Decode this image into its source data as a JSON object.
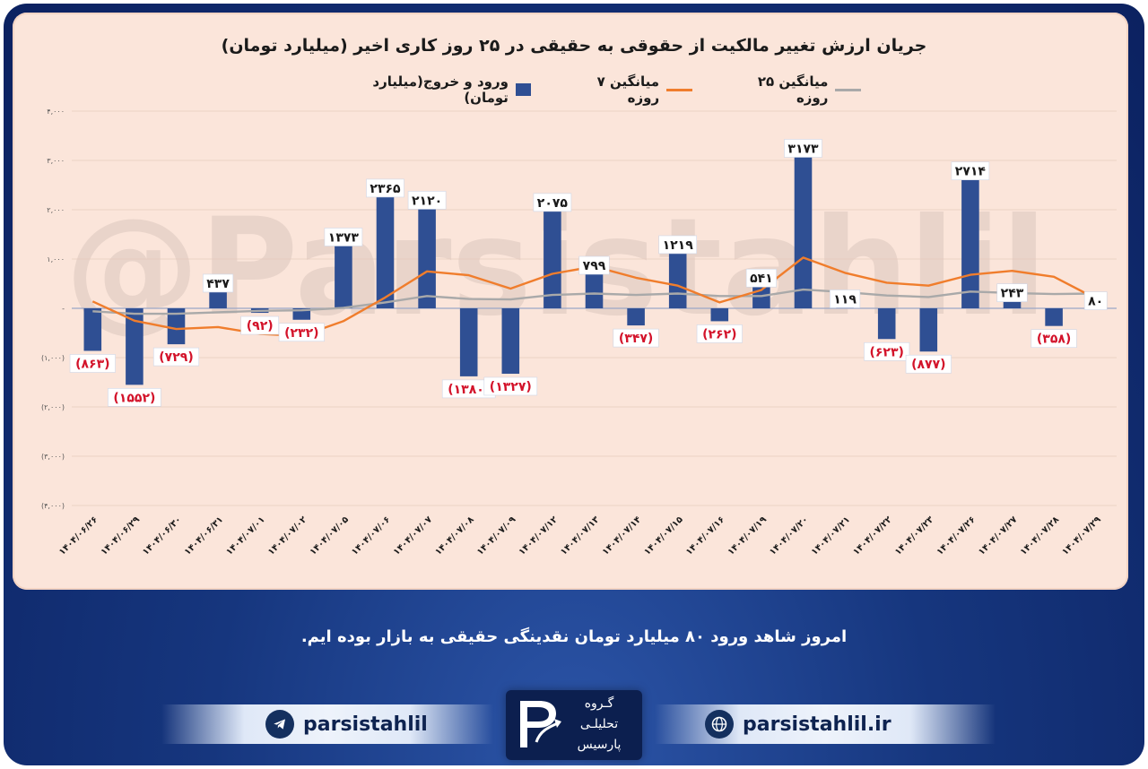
{
  "header": {
    "title": "جریان ارزش تغییر مالکیت از حقوقی به حقیقی در ۲۵ روز کاری اخیر (میلیارد تومان)"
  },
  "legend": {
    "bars_label": "ورود و خروج(میلیارد تومان)",
    "ma7_label": "میانگین ۷ روزه",
    "ma25_label": "میانگین ۲۵ روزه"
  },
  "watermark": "@Parsistahlil",
  "colors": {
    "bar": "#2f4f93",
    "ma7": "#f07d2c",
    "ma25": "#a9a9a9",
    "negative_label": "#d3132a",
    "positive_label": "#1a1a1a"
  },
  "chart_data": {
    "type": "bar",
    "title": "جریان ارزش تغییر مالکیت از حقوقی به حقیقی در ۲۵ روز کاری اخیر (میلیارد تومان)",
    "xlabel": "",
    "ylabel": "",
    "ylim": [
      -4000,
      4000
    ],
    "grid": true,
    "legend_position": "top",
    "y_ticks": [
      4000,
      3000,
      2000,
      1000,
      0,
      -1000,
      -2000,
      -3000,
      -4000
    ],
    "y_tick_labels": [
      "۴,۰۰۰",
      "۳,۰۰۰",
      "۲,۰۰۰",
      "۱,۰۰۰",
      "-",
      "(۱,۰۰۰)",
      "(۲,۰۰۰)",
      "(۳,۰۰۰)",
      "(۴,۰۰۰)"
    ],
    "categories": [
      "۱۴۰۴/۰۶/۲۶",
      "۱۴۰۴/۰۶/۲۹",
      "۱۴۰۴/۰۶/۳۰",
      "۱۴۰۴/۰۶/۳۱",
      "۱۴۰۴/۰۷/۰۱",
      "۱۴۰۴/۰۷/۰۲",
      "۱۴۰۴/۰۷/۰۵",
      "۱۴۰۴/۰۷/۰۶",
      "۱۴۰۴/۰۷/۰۷",
      "۱۴۰۴/۰۷/۰۸",
      "۱۴۰۴/۰۷/۰۹",
      "۱۴۰۴/۰۷/۱۲",
      "۱۴۰۴/۰۷/۱۳",
      "۱۴۰۴/۰۷/۱۴",
      "۱۴۰۴/۰۷/۱۵",
      "۱۴۰۴/۰۷/۱۶",
      "۱۴۰۴/۰۷/۱۹",
      "۱۴۰۴/۰۷/۲۰",
      "۱۴۰۴/۰۷/۲۱",
      "۱۴۰۴/۰۷/۲۲",
      "۱۴۰۴/۰۷/۲۳",
      "۱۴۰۴/۰۷/۲۶",
      "۱۴۰۴/۰۷/۲۷",
      "۱۴۰۴/۰۷/۲۸",
      "۱۴۰۴/۰۷/۲۹"
    ],
    "series": [
      {
        "name": "ورود و خروج(میلیارد تومان)",
        "type": "bar",
        "values": [
          -863,
          -1552,
          -729,
          437,
          -92,
          -232,
          1373,
          2365,
          2120,
          -1380,
          -1327,
          2075,
          799,
          -347,
          1219,
          -262,
          541,
          3173,
          119,
          -623,
          -877,
          2714,
          243,
          -358,
          80
        ],
        "labels": [
          "(۸۶۳)",
          "(۱۵۵۲)",
          "(۷۲۹)",
          "۴۳۷",
          "(۹۲)",
          "(۲۳۲)",
          "۱۳۷۳",
          "۲۳۶۵",
          "۲۱۲۰",
          "(۱۳۸۰)",
          "(۱۳۲۷)",
          "۲۰۷۵",
          "۷۹۹",
          "(۳۴۷)",
          "۱۲۱۹",
          "(۲۶۲)",
          "۵۴۱",
          "۳۱۷۳",
          "۱۱۹",
          "(۶۲۳)",
          "(۸۷۷)",
          "۲۷۱۴",
          "۲۴۳",
          "(۳۵۸)",
          "۸۰"
        ]
      },
      {
        "name": "میانگین ۷ روزه",
        "type": "line",
        "values": [
          140,
          -250,
          -420,
          -380,
          -520,
          -560,
          -260,
          220,
          750,
          670,
          400,
          700,
          850,
          620,
          460,
          120,
          370,
          1030,
          720,
          520,
          460,
          680,
          760,
          640,
          200
        ]
      },
      {
        "name": "میانگین ۲۵ روزه",
        "type": "line",
        "values": [
          -60,
          -110,
          -110,
          -80,
          -50,
          -40,
          10,
          120,
          250,
          190,
          180,
          270,
          300,
          270,
          300,
          250,
          250,
          380,
          330,
          260,
          230,
          340,
          310,
          290,
          300
        ]
      }
    ]
  },
  "caption": "امروز شاهد ورود ۸۰ میلیارد تومان نقدینگی حقیقی به بازار بوده ایم.",
  "footer": {
    "telegram_handle": "parsistahlil",
    "website": "parsistahlil.ir",
    "logo_line1": "گـروه",
    "logo_line2": "تحلیلـی",
    "logo_line3": "پارسیس"
  }
}
